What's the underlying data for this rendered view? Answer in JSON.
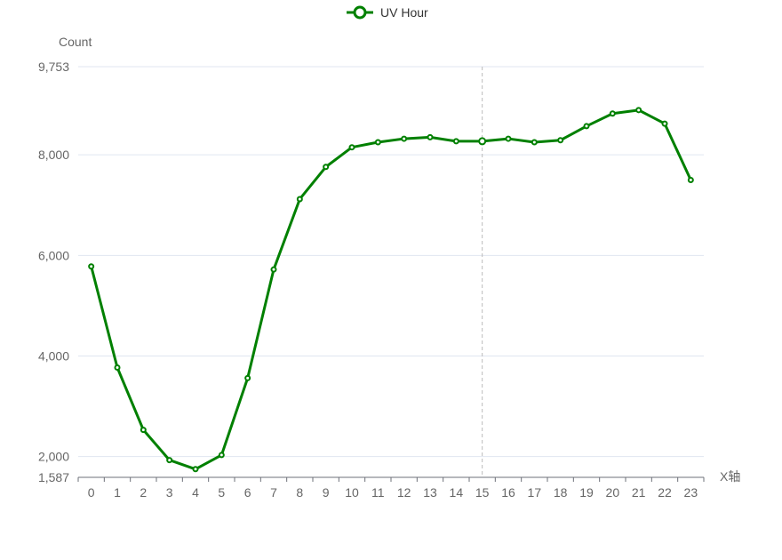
{
  "chart_data": {
    "type": "line",
    "legend_position": "top-center",
    "grid": true,
    "xlabel": "X轴",
    "ylabel": "Count",
    "ylim": [
      1587,
      9753
    ],
    "y_ticks": [
      1587,
      2000,
      4000,
      6000,
      8000,
      9753
    ],
    "y_tick_labels": [
      "1,587",
      "2,000",
      "4,000",
      "6,000",
      "8,000",
      "9,753"
    ],
    "categories": [
      "0",
      "1",
      "2",
      "3",
      "4",
      "5",
      "6",
      "7",
      "8",
      "9",
      "10",
      "11",
      "12",
      "13",
      "14",
      "15",
      "16",
      "17",
      "18",
      "19",
      "20",
      "21",
      "22",
      "23"
    ],
    "highlight_category": "15",
    "series": [
      {
        "name": "UV Hour",
        "color": "#008000",
        "values": [
          5780,
          3770,
          2530,
          1930,
          1750,
          2030,
          3560,
          5720,
          7120,
          7760,
          8150,
          8250,
          8320,
          8350,
          8270,
          8270,
          8320,
          8250,
          8290,
          8570,
          8820,
          8890,
          8620,
          7500
        ]
      }
    ]
  }
}
